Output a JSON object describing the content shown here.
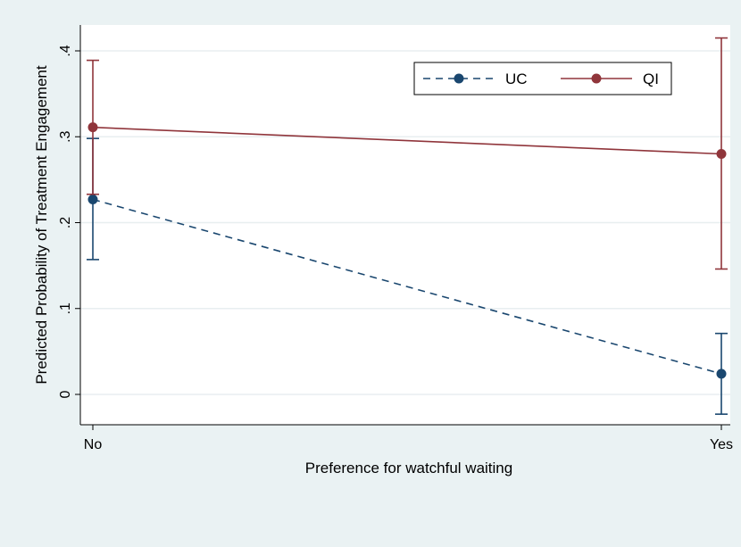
{
  "chart_data": {
    "type": "line",
    "title": "",
    "xlabel": "Preference for watchful waiting",
    "ylabel": "Predicted Probability of Treatment Engagement",
    "categories": [
      "No",
      "Yes"
    ],
    "ylim": [
      -0.05,
      0.45
    ],
    "yticks": [
      0,
      0.1,
      0.2,
      0.3,
      0.4
    ],
    "ytick_labels": [
      "0",
      ".1",
      ".2",
      ".3",
      ".4"
    ],
    "grid": true,
    "legend_position": "top-right",
    "series": [
      {
        "name": "UC",
        "color": "#1a476f",
        "line_style": "dashed",
        "values": [
          0.227,
          0.024
        ],
        "ci_lower": [
          0.157,
          -0.023
        ],
        "ci_upper": [
          0.298,
          0.071
        ]
      },
      {
        "name": "QI",
        "color": "#90353b",
        "line_style": "solid",
        "values": [
          0.311,
          0.28
        ],
        "ci_lower": [
          0.233,
          0.146
        ],
        "ci_upper": [
          0.389,
          0.415
        ]
      }
    ]
  }
}
